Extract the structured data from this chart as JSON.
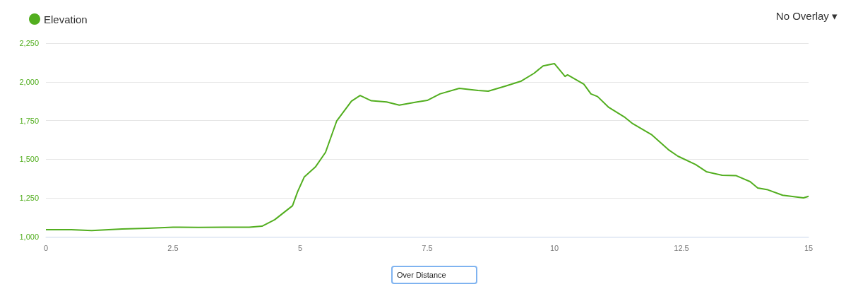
{
  "chart_data": {
    "type": "line",
    "legend": "top left",
    "grid": "y",
    "marker": "none",
    "annotations": [
      "No Overlay ▾",
      "Over Distance"
    ],
    "xlim": [
      0,
      15
    ],
    "xticks": [
      0,
      2.5,
      5,
      7.5,
      10,
      12.5,
      15
    ],
    "ylim": [
      1000,
      2250
    ],
    "yticks": [
      {
        "value": 1000,
        "label": "1,000"
      },
      {
        "value": 1250,
        "label": "1,250"
      },
      {
        "value": 1500,
        "label": "1,500"
      },
      {
        "value": 1750,
        "label": "1,750"
      },
      {
        "value": 2000,
        "label": "2,000"
      },
      {
        "value": 2250,
        "label": "2,250"
      }
    ],
    "series": [
      {
        "name": "Elevation",
        "color": "#52ae1f",
        "x": [
          0,
          0.5,
          0.9,
          1.5,
          2,
          2.5,
          3,
          3.5,
          4,
          4.25,
          4.5,
          4.85,
          4.95,
          5.08,
          5.3,
          5.5,
          5.72,
          6.01,
          6.18,
          6.4,
          6.7,
          6.95,
          7.3,
          7.5,
          7.75,
          8.13,
          8.5,
          8.7,
          9.03,
          9.35,
          9.6,
          9.78,
          10,
          10.21,
          10.26,
          10.58,
          10.72,
          10.85,
          11.07,
          11.39,
          11.54,
          11.92,
          12.24,
          12.43,
          12.78,
          12.99,
          13.3,
          13.57,
          13.85,
          14,
          14.2,
          14.49,
          14.9,
          15
        ],
        "values": [
          1046,
          1046,
          1040,
          1050,
          1055,
          1062,
          1060,
          1062,
          1062,
          1068,
          1110,
          1200,
          1290,
          1385,
          1450,
          1545,
          1748,
          1875,
          1912,
          1878,
          1870,
          1850,
          1870,
          1880,
          1922,
          1958,
          1944,
          1940,
          1972,
          2005,
          2055,
          2103,
          2118,
          2035,
          2045,
          1985,
          1922,
          1905,
          1835,
          1770,
          1730,
          1657,
          1563,
          1520,
          1466,
          1420,
          1397,
          1395,
          1356,
          1315,
          1303,
          1268,
          1251,
          1261
        ]
      }
    ]
  }
}
